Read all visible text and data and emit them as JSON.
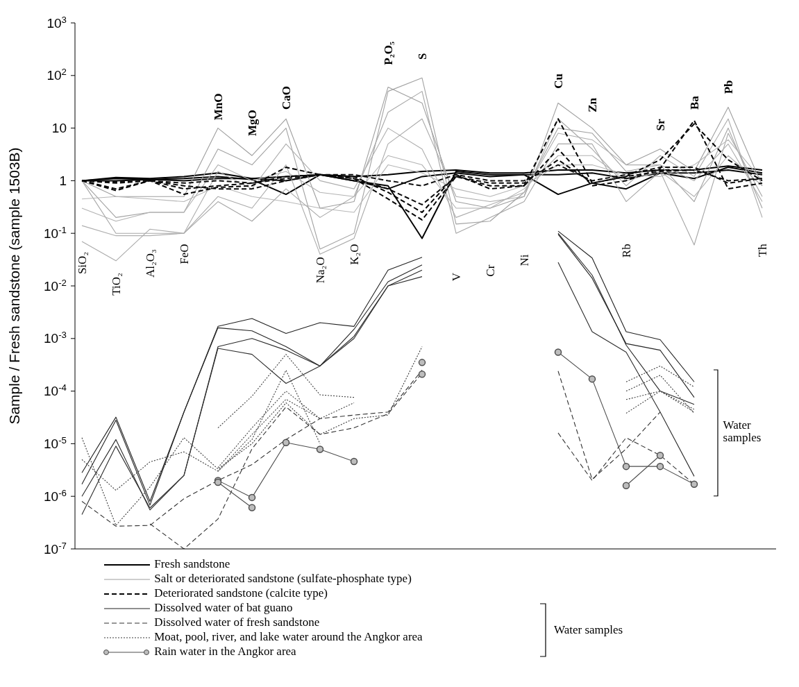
{
  "chart_data": {
    "type": "line",
    "ylabel": "Sample / Fresh sandstone (sample 1503B)",
    "categories": [
      "SiO₂",
      "TiO₂",
      "Al₂O₃",
      "FeO",
      "MnO",
      "MgO",
      "CaO",
      "Na₂O",
      "K₂O",
      "P₂O₅",
      "S",
      "V",
      "Cr",
      "Ni",
      "Cu",
      "Zn",
      "Rb",
      "Sr",
      "Ba",
      "Pb",
      "Th"
    ],
    "log": true,
    "ylim": [
      1e-07,
      1000
    ],
    "yticks": [
      {
        "value": 1e-07,
        "label": "10$^{-7}$"
      },
      {
        "value": 1e-06,
        "label": "10$^{-6}$"
      },
      {
        "value": 1e-05,
        "label": "10$^{-5}$"
      },
      {
        "value": 0.0001,
        "label": "10$^{-4}$"
      },
      {
        "value": 0.001,
        "label": "10$^{-3}$"
      },
      {
        "value": 0.01,
        "label": "10$^{-2}$"
      },
      {
        "value": 0.1,
        "label": "10$^{-1}$"
      },
      1,
      10,
      {
        "value": 100,
        "label": "10$^{2}$"
      },
      {
        "value": 1000,
        "label": "10$^{3}$"
      }
    ],
    "legend": "bottom",
    "annotations": [
      "Water samples",
      "Water samples"
    ],
    "series": [
      {
        "name": "Fresh sandstone",
        "color": "#000000",
        "line_style": "solid",
        "marker": "none",
        "values": [
          1,
          1.15,
          1.1,
          1.2,
          1.4,
          1.1,
          1.2,
          1.3,
          1.2,
          1.3,
          1.5,
          1.6,
          1.4,
          1.4,
          1.6,
          1.6,
          1.4,
          1.6,
          1.6,
          1.9,
          1.6
        ]
      },
      {
        "color": "#040404",
        "line_style": "solid",
        "marker": "none",
        "values": [
          1,
          1.1,
          1.05,
          1.1,
          1.2,
          1.05,
          0.55,
          1.3,
          1.0,
          0.8,
          0.08,
          1.5,
          1.3,
          1.3,
          0.55,
          0.9,
          0.7,
          1.4,
          1.1,
          1.8,
          1.4
        ]
      },
      {
        "color": "#080808",
        "line_style": "solid",
        "marker": "none",
        "values": [
          1,
          1.0,
          1.05,
          1.0,
          1.1,
          1.1,
          1.0,
          1.3,
          1.0,
          0.7,
          1.2,
          1.4,
          1.2,
          1.3,
          1.3,
          1.4,
          1.1,
          1.4,
          1.4,
          1.6,
          1.3
        ]
      },
      {
        "name": "Salt or deteriorated sandstone (sulfate-phosphate type)",
        "color": "#9e9e9e",
        "line_style": "solid",
        "marker": "none",
        "values": [
          1,
          0.5,
          0.5,
          0.5,
          10,
          3,
          15,
          0.3,
          0.4,
          60,
          30,
          0.4,
          0.3,
          0.5,
          30,
          10,
          2,
          4,
          1.5,
          25,
          0.8
        ]
      },
      {
        "color": "#a2a2a2",
        "line_style": "solid",
        "marker": "none",
        "values": [
          1,
          0.2,
          0.25,
          0.25,
          4,
          2,
          10,
          0.05,
          0.1,
          50,
          90,
          0.15,
          0.17,
          0.6,
          10,
          8,
          1.5,
          2,
          0.4,
          10,
          0.3
        ]
      },
      {
        "color": "#a6a6a6",
        "line_style": "solid",
        "marker": "none",
        "values": [
          1,
          0.1,
          0.1,
          0.1,
          0.4,
          0.17,
          0.7,
          0.2,
          0.5,
          20,
          50,
          0.1,
          0.2,
          0.4,
          5,
          5,
          0.4,
          1.5,
          0.06,
          8,
          0.5
        ]
      },
      {
        "color": "#aaaaaa",
        "line_style": "solid",
        "marker": "none",
        "values": [
          0.07,
          0.03,
          0.12,
          0.1,
          0.5,
          0.3,
          2,
          0.04,
          0.08,
          5,
          15,
          0.5,
          0.4,
          0.5,
          15,
          4,
          0.8,
          3,
          1.2,
          15,
          0.2
        ]
      },
      {
        "color": "#aeaeae",
        "line_style": "solid",
        "marker": "none",
        "values": [
          0.14,
          0.09,
          0.09,
          0.1,
          1.5,
          0.7,
          5,
          1,
          0.7,
          10,
          4,
          0.2,
          0.35,
          0.6,
          8,
          6,
          2,
          2,
          1,
          5,
          0.4
        ]
      },
      {
        "color": "#b2b2b2",
        "line_style": "solid",
        "marker": "none",
        "values": [
          0.3,
          0.17,
          0.25,
          0.25,
          2,
          1,
          1.5,
          0.6,
          0.5,
          3,
          2,
          0.3,
          0.3,
          0.7,
          3,
          3,
          1,
          1.5,
          0.5,
          3,
          0.8
        ]
      },
      {
        "color": "#b6b6b6",
        "line_style": "solid",
        "marker": "none",
        "values": [
          0.45,
          0.5,
          0.45,
          0.4,
          0.8,
          0.5,
          0.4,
          0.3,
          0.25,
          2,
          1.4,
          0.7,
          0.5,
          0.8,
          2,
          2,
          1.3,
          1.2,
          2,
          6,
          1
        ]
      },
      {
        "name": "Deteriorated sandstone (calcite type)",
        "color": "#020202",
        "line_style": "dashed",
        "marker": "none",
        "values": [
          1,
          0.65,
          1.0,
          0.55,
          0.75,
          0.8,
          1.8,
          1.3,
          1.2,
          0.6,
          0.25,
          1.3,
          0.7,
          0.8,
          15,
          0.9,
          1.2,
          2.5,
          12,
          2.5,
          1.0
        ]
      },
      {
        "color": "#060606",
        "line_style": "dashed",
        "marker": "none",
        "values": [
          1,
          0.7,
          1.0,
          0.7,
          0.8,
          0.9,
          1.2,
          1.3,
          1.1,
          0.45,
          0.18,
          1.2,
          0.8,
          0.8,
          4,
          0.8,
          1.0,
          1.7,
          14,
          0.7,
          0.9
        ]
      },
      {
        "color": "#0a0a0a",
        "line_style": "dashed",
        "marker": "none",
        "values": [
          1,
          0.9,
          1.0,
          0.8,
          0.7,
          0.7,
          1.0,
          1.3,
          1.1,
          0.7,
          0.35,
          1.2,
          0.9,
          0.9,
          2.5,
          0.9,
          1.2,
          1.5,
          1.6,
          1.0,
          1.1
        ]
      },
      {
        "color": "#0e0e0e",
        "line_style": "dashed",
        "marker": "none",
        "values": [
          1,
          0.95,
          1.0,
          0.9,
          1.0,
          0.9,
          1.1,
          1.3,
          1.3,
          1.0,
          0.8,
          1.3,
          1.0,
          1.0,
          2.0,
          1.0,
          1.3,
          1.8,
          1.8,
          0.9,
          1.1
        ]
      },
      {
        "name": "Dissolved water of bat guano",
        "color": "#202020",
        "line_style": "solid",
        "marker": "none",
        "values": [
          2.8e-06,
          3.2e-05,
          8e-07,
          4e-05,
          0.0017,
          0.0024,
          0.00125,
          0.002,
          0.0017,
          0.02,
          0.035,
          null,
          null,
          null,
          0.11,
          0.034,
          0.00135,
          0.00095,
          0.00015,
          null,
          null
        ]
      },
      {
        "color": "#242424",
        "line_style": "solid",
        "marker": "none",
        "values": [
          1.7e-06,
          2.8e-05,
          6.8e-07,
          4e-05,
          0.0016,
          0.0014,
          0.0007,
          0.0003,
          0.0015,
          0.012,
          0.025,
          null,
          null,
          null,
          0.096,
          0.014,
          0.0008,
          0.0006,
          7.6e-05,
          null,
          null
        ]
      },
      {
        "color": "#282828",
        "line_style": "solid",
        "marker": "none",
        "values": [
          1e-06,
          1.2e-05,
          5.5e-07,
          2.5e-06,
          0.0007,
          0.001,
          0.0006,
          0.0003,
          0.0011,
          0.01,
          0.02,
          null,
          null,
          null,
          0.1,
          0.016,
          0.00075,
          0.0001,
          5.6e-05,
          null,
          null
        ]
      },
      {
        "color": "#2c2c2c",
        "line_style": "solid",
        "marker": "none",
        "values": [
          4.5e-07,
          9e-06,
          6e-07,
          2.5e-06,
          0.00065,
          0.0005,
          0.00014,
          0.0003,
          0.001,
          0.01,
          0.015,
          null,
          null,
          null,
          0.028,
          0.00135,
          0.00055,
          4e-05,
          2.4e-06,
          null,
          null
        ]
      },
      {
        "name": "Dissolved water of fresh sandstone",
        "color": "#303030",
        "line_style": "dashed",
        "marker": "none",
        "values": [
          8e-07,
          2.7e-07,
          2.8e-07,
          9e-07,
          2e-06,
          4e-06,
          1.2e-05,
          3e-05,
          3.5e-05,
          4e-05,
          0.00025,
          null,
          null,
          null,
          0.00024,
          2.1e-06,
          8e-06,
          4e-05,
          null,
          null,
          null
        ]
      },
      {
        "color": "#343434",
        "line_style": "dashed",
        "marker": "none",
        "values": [
          null,
          null,
          3e-07,
          1e-07,
          3.7e-07,
          8e-06,
          5e-05,
          1.5e-05,
          2e-05,
          3.7e-05,
          0.00022,
          null,
          null,
          null,
          1.6e-05,
          2e-06,
          1.3e-05,
          6e-06,
          1.7e-06,
          null,
          null
        ]
      },
      {
        "name": "Moat, pool, river, and lake water around the Angkor area",
        "color": "#383838",
        "line_style": "dotted",
        "marker": "none",
        "values": [
          1.3e-05,
          2.8e-07,
          1.5e-06,
          1.3e-05,
          3.3e-06,
          1e-05,
          6e-05,
          1.5e-05,
          3e-05,
          3.5e-05,
          0.0007,
          null,
          null,
          null,
          null,
          null,
          0.00015,
          0.0003,
          0.00012,
          null,
          null
        ]
      },
      {
        "color": "#3c3c3c",
        "line_style": "dotted",
        "marker": "none",
        "values": [
          5e-06,
          1.3e-06,
          4.5e-06,
          7e-06,
          3e-06,
          1.2e-05,
          0.00025,
          1e-05,
          null,
          null,
          null,
          null,
          null,
          null,
          null,
          null,
          0.0001,
          0.0002,
          3.8e-05,
          null,
          null
        ]
      },
      {
        "color": "#404040",
        "line_style": "dotted",
        "marker": "none",
        "values": [
          null,
          null,
          null,
          null,
          2e-05,
          8e-05,
          0.0005,
          8.5e-05,
          7.6e-05,
          null,
          null,
          null,
          null,
          null,
          null,
          null,
          6.9e-05,
          0.0001,
          4e-05,
          null,
          null
        ]
      },
      {
        "color": "#444444",
        "line_style": "dotted",
        "marker": "none",
        "values": [
          null,
          null,
          null,
          null,
          3.5e-06,
          2e-05,
          0.0001,
          3e-05,
          6e-05,
          null,
          null,
          null,
          null,
          null,
          null,
          null,
          3.8e-05,
          0.0001,
          4.5e-05,
          null,
          null
        ]
      },
      {
        "color": "#484848",
        "line_style": "dotted",
        "marker": "none",
        "values": [
          null,
          null,
          null,
          null,
          3e-06,
          1.5e-05,
          7e-05,
          3e-05,
          null,
          null,
          null,
          null,
          null,
          null,
          null,
          null,
          null,
          null,
          null,
          null,
          null
        ]
      },
      {
        "name": "Rain water in the Angkor area",
        "color": "#4c4c4c",
        "line_style": "solid",
        "marker": "circle",
        "values": [
          null,
          null,
          null,
          null,
          2e-06,
          9.5e-07,
          1.05e-05,
          7.8e-06,
          4.6e-06,
          null,
          null,
          null,
          null,
          null,
          0.00055,
          0.00017,
          3.7e-06,
          3.7e-06,
          1.7e-06,
          null,
          null
        ]
      },
      {
        "color": "#505050",
        "line_style": "solid",
        "marker": "circle",
        "values": [
          null,
          null,
          null,
          null,
          1.85e-06,
          6.1e-07,
          null,
          null,
          null,
          null,
          0.00035,
          null,
          null,
          null,
          null,
          null,
          1.6e-06,
          6e-06,
          null,
          null,
          null
        ]
      },
      {
        "color": "#545454",
        "line_style": "solid",
        "marker": "circle",
        "values": [
          null,
          null,
          null,
          null,
          null,
          null,
          null,
          null,
          null,
          null,
          0.00021,
          null,
          null,
          null,
          null,
          null,
          null,
          null,
          null,
          null,
          null
        ]
      }
    ]
  }
}
